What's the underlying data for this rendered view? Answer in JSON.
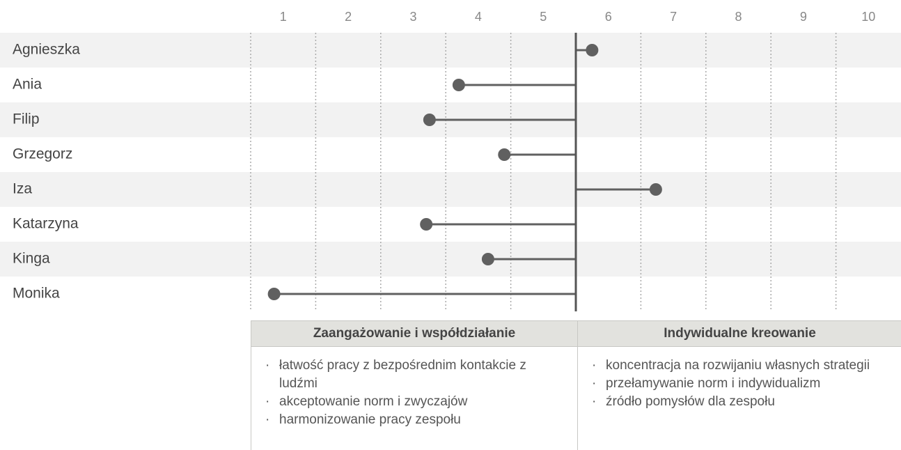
{
  "chart_data": {
    "type": "lollipop",
    "categories": [
      "Agnieszka",
      "Ania",
      "Filip",
      "Grzegorz",
      "Iza",
      "Katarzyna",
      "Kinga",
      "Monika"
    ],
    "values": [
      5.75,
      3.7,
      3.25,
      4.4,
      6.73,
      3.2,
      4.15,
      0.86
    ],
    "baseline": 5.5,
    "color": "#606060",
    "xlim": [
      0.5,
      10.5
    ],
    "xticks": [
      1,
      2,
      3,
      4,
      5,
      6,
      7,
      8,
      9,
      10
    ],
    "grid": true
  },
  "table": {
    "columns": [
      {
        "title": "Zaangażowanie i współdziałanie",
        "items": [
          "łatwość pracy z bezpośrednim kontakcie z ludźmi",
          "akceptowanie norm i zwyczajów",
          "harmonizowanie pracy zespołu"
        ]
      },
      {
        "title": "Indywidualne kreowanie",
        "items": [
          "koncentracja na rozwijaniu własnych strategii",
          "przełamywanie norm i indywidualizm",
          "źródło pomysłów dla zespołu"
        ]
      }
    ]
  }
}
